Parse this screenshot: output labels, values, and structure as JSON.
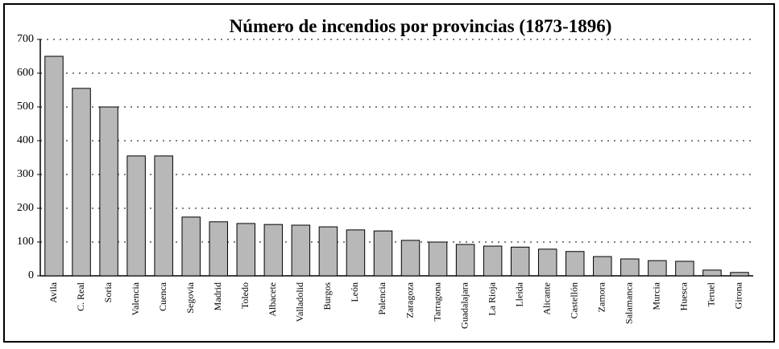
{
  "chart_data": {
    "type": "bar",
    "title": "Número de incendios por provincias (1873-1896)",
    "categories": [
      "Avila",
      "C. Real",
      "Soria",
      "Valencia",
      "Cuenca",
      "Segovia",
      "Madrid",
      "Toledo",
      "Albacete",
      "Valladolid",
      "Burgos",
      "León",
      "Palencia",
      "Zaragoza",
      "Tarragona",
      "Guadalajara",
      "La Rioja",
      "Lleida",
      "Alicante",
      "Castellón",
      "Zamora",
      "Salamanca",
      "Murcia",
      "Huesca",
      "Teruel",
      "Girona"
    ],
    "values": [
      650,
      555,
      500,
      355,
      355,
      174,
      160,
      155,
      152,
      150,
      145,
      136,
      133,
      105,
      100,
      93,
      88,
      85,
      79,
      72,
      57,
      50,
      45,
      43,
      17,
      10
    ],
    "color": "#b8b8b8",
    "ylim": [
      0,
      700
    ],
    "yticks": [
      0,
      100,
      200,
      300,
      400,
      500,
      600,
      700
    ],
    "grid": true
  }
}
